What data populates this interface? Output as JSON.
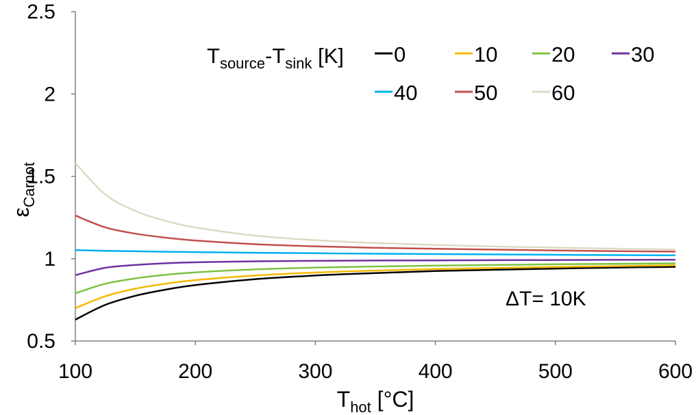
{
  "chart_data": {
    "type": "line",
    "xlabel": {
      "main": "T",
      "sub": "hot",
      "rest": " [°C]"
    },
    "ylabel": {
      "main": "ε",
      "sub": "Carnot"
    },
    "xlim": [
      100,
      600
    ],
    "ylim": [
      0.5,
      2.5
    ],
    "x_ticks": [
      "100",
      "200",
      "300",
      "400",
      "500",
      "600"
    ],
    "y_ticks": [
      "0.5",
      "1",
      "1.5",
      "2",
      "2.5"
    ],
    "grid": false,
    "legend": {
      "position": "top-right",
      "title": {
        "main1": "T",
        "sub1": "source",
        "dash": "-T",
        "sub2": "sink",
        "rest": " [K]"
      }
    },
    "annotation": "ΔT= 10K",
    "x": [
      100,
      125,
      150,
      175,
      200,
      250,
      300,
      350,
      400,
      450,
      500,
      550,
      600
    ],
    "series": [
      {
        "name": "0",
        "color": "#000000",
        "values": [
          0.63,
          0.72,
          0.775,
          0.812,
          0.84,
          0.876,
          0.898,
          0.913,
          0.925,
          0.933,
          0.94,
          0.946,
          0.95
        ]
      },
      {
        "name": "10",
        "color": "#f5b800",
        "values": [
          0.7,
          0.772,
          0.818,
          0.848,
          0.87,
          0.898,
          0.916,
          0.928,
          0.937,
          0.944,
          0.95,
          0.955,
          0.96
        ]
      },
      {
        "name": "20",
        "color": "#7dc242",
        "values": [
          0.79,
          0.848,
          0.88,
          0.902,
          0.917,
          0.935,
          0.946,
          0.953,
          0.958,
          0.962,
          0.966,
          0.969,
          0.972
        ]
      },
      {
        "name": "30",
        "color": "#7030a0",
        "values": [
          0.9,
          0.945,
          0.962,
          0.972,
          0.978,
          0.984,
          0.987,
          0.989,
          0.99,
          0.991,
          0.992,
          0.993,
          0.994
        ]
      },
      {
        "name": "40",
        "color": "#00b0f0",
        "values": [
          1.052,
          1.048,
          1.045,
          1.042,
          1.04,
          1.036,
          1.033,
          1.03,
          1.028,
          1.026,
          1.024,
          1.022,
          1.02
        ]
      },
      {
        "name": "50",
        "color": "#c0504d",
        "values": [
          1.262,
          1.19,
          1.152,
          1.128,
          1.11,
          1.088,
          1.075,
          1.066,
          1.06,
          1.055,
          1.05,
          1.046,
          1.043
        ]
      },
      {
        "name": "60",
        "color": "#ddd9c4",
        "values": [
          1.58,
          1.39,
          1.29,
          1.23,
          1.19,
          1.14,
          1.112,
          1.095,
          1.083,
          1.074,
          1.067,
          1.061,
          1.056
        ]
      }
    ]
  }
}
